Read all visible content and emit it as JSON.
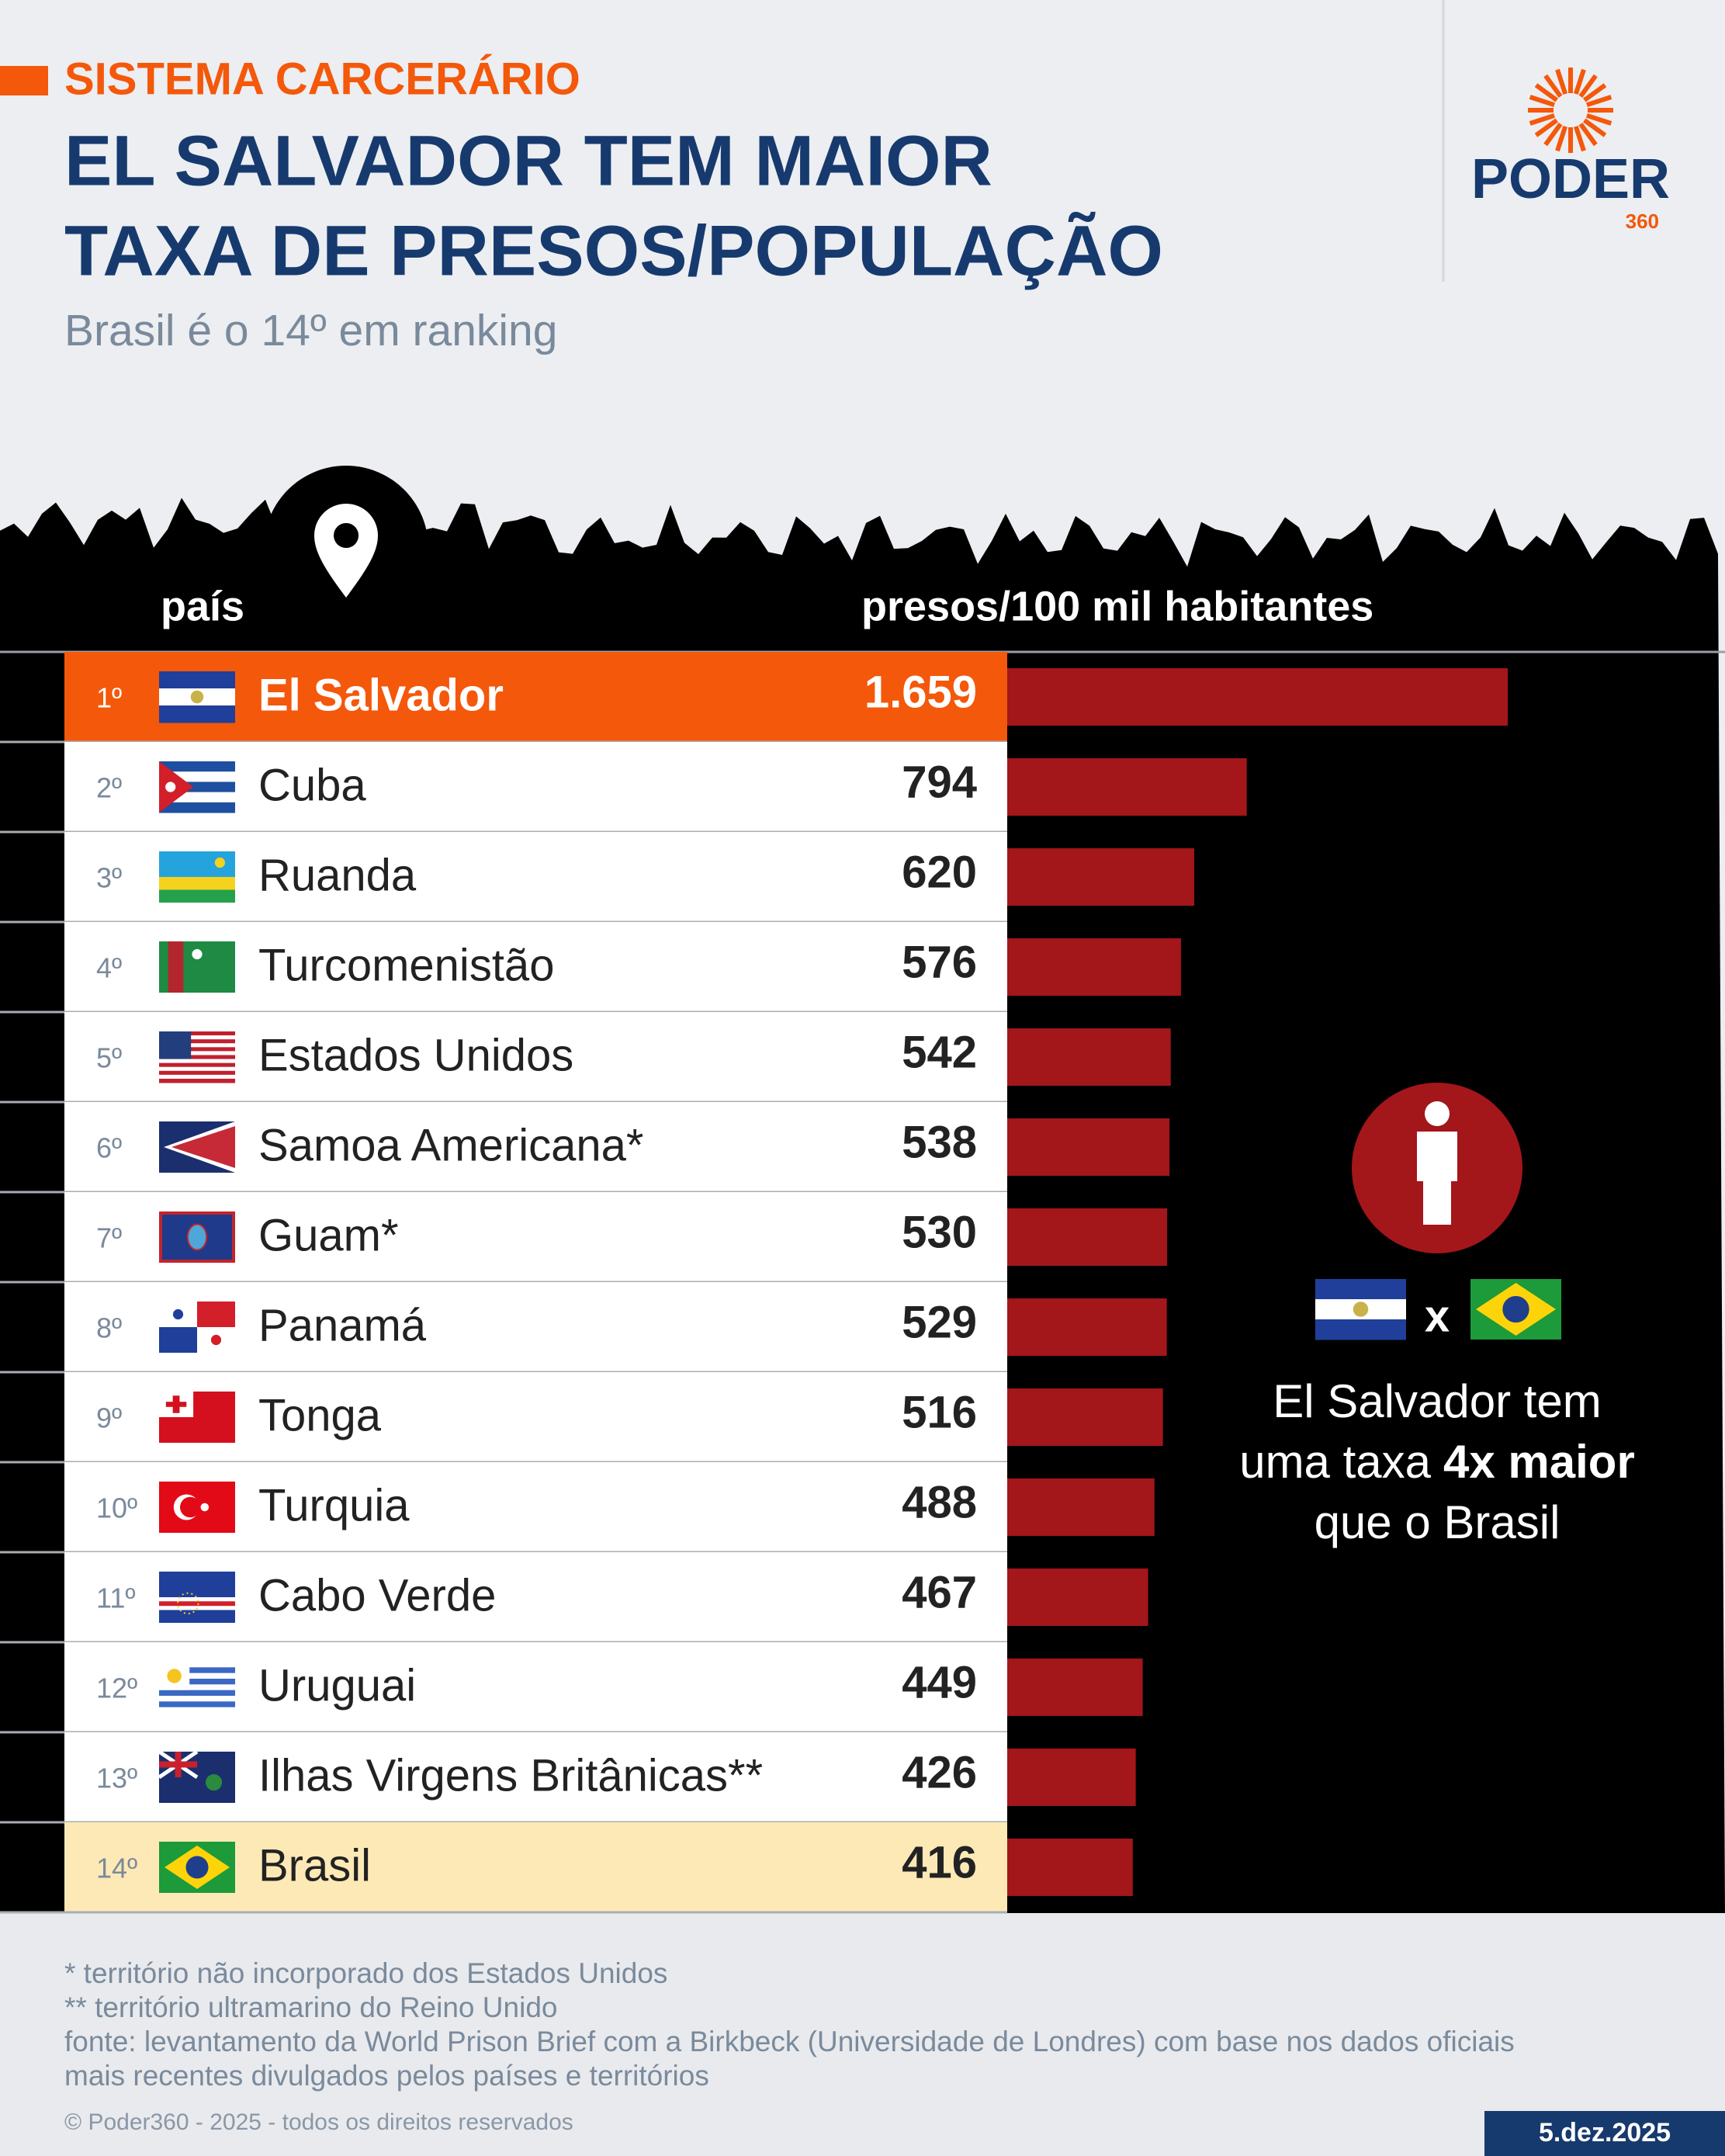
{
  "chart_data": {
    "type": "bar",
    "kicker": "SISTEMA CARCERÁRIO",
    "title": [
      "EL SALVADOR TEM MAIOR",
      "TAXA DE PRESOS/POPULAÇÃO"
    ],
    "subtitle": "Brasil é o 14º em ranking",
    "category_header": "país",
    "value_header": "presos/100 mil habitantes",
    "ranks": [
      "1º",
      "2º",
      "3º",
      "4º",
      "5º",
      "6º",
      "7º",
      "8º",
      "9º",
      "10º",
      "11º",
      "12º",
      "13º",
      "14º"
    ],
    "categories": [
      "El Salvador",
      "Cuba",
      "Ruanda",
      "Turcomenistão",
      "Estados Unidos",
      "Samoa Americana*",
      "Guam*",
      "Panamá",
      "Tonga",
      "Turquia",
      "Cabo Verde",
      "Uruguai",
      "Ilhas Virgens Britânicas**",
      "Brasil"
    ],
    "values": [
      1659,
      794,
      620,
      576,
      542,
      538,
      530,
      529,
      516,
      488,
      467,
      449,
      426,
      416
    ],
    "value_labels": [
      "1.659",
      "794",
      "620",
      "576",
      "542",
      "538",
      "530",
      "529",
      "516",
      "488",
      "467",
      "449",
      "426",
      "416"
    ],
    "color": "#a3161a",
    "annotation": {
      "vs": "x",
      "line1": "El Salvador tem",
      "line2": "uma taxa",
      "line2_bold": "4x maior",
      "line3": "que o Brasil"
    }
  },
  "brand": {
    "name": "PODER",
    "sub": "360"
  },
  "footer": {
    "notes": [
      "* território não incorporado dos Estados Unidos",
      "** território ultramarino do Reino Unido",
      "fonte: levantamento da World Prison Brief com a Birkbeck (Universidade de Londres) com base nos dados oficiais",
      "mais recentes divulgados pelos países e territórios"
    ],
    "copyright": "© Poder360 - 2025 - todos os direitos reservados",
    "date": "5.dez.2025"
  }
}
